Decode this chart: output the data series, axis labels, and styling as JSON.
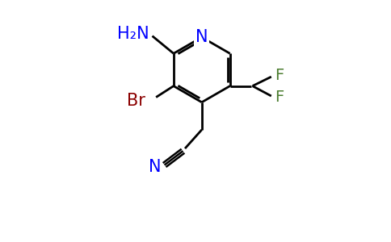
{
  "background_color": "#ffffff",
  "atom_colors": {
    "N": "#0000ff",
    "Br": "#8b0000",
    "F": "#4a7c2f",
    "C": "#000000"
  },
  "bond_color": "#000000",
  "bond_lw": 2.0,
  "font_size": 15,
  "figsize": [
    4.84,
    3.0
  ],
  "dpi": 100
}
